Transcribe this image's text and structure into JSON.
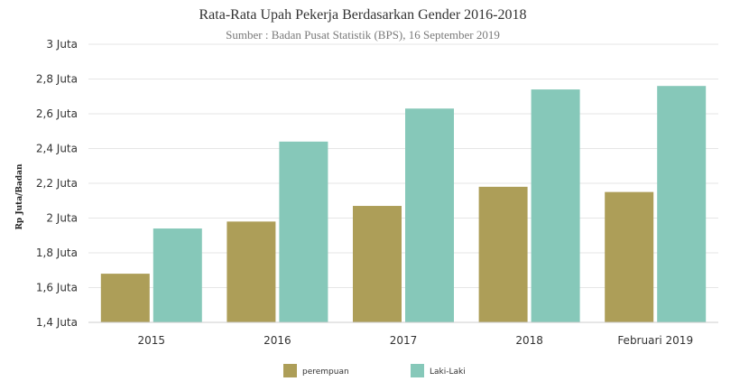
{
  "chart_data": {
    "type": "bar",
    "title": "Rata-Rata Upah Pekerja Berdasarkan Gender 2016-2018",
    "subtitle": "Sumber : Badan Pusat Statistik (BPS), 16 September 2019",
    "xlabel": "",
    "ylabel": "Rp Juta/Badan",
    "categories": [
      "2015",
      "2016",
      "2017",
      "2018",
      "Februari 2019"
    ],
    "series": [
      {
        "name": "perempuan",
        "color": "#ad9e58",
        "values": [
          1.68,
          1.98,
          2.07,
          2.18,
          2.15
        ]
      },
      {
        "name": "Laki-Laki",
        "color": "#86c8b9",
        "values": [
          1.94,
          2.44,
          2.63,
          2.74,
          2.76
        ]
      }
    ],
    "ylim": [
      1.4,
      3.0
    ],
    "yticks": [
      1.4,
      1.6,
      1.8,
      2.0,
      2.2,
      2.4,
      2.6,
      2.8,
      3.0
    ],
    "ytick_labels": [
      "1,4 Juta",
      "1,6 Juta",
      "1,8 Juta",
      "2 Juta",
      "2,2 Juta",
      "2,4 Juta",
      "2,6 Juta",
      "2,8 Juta",
      "3 Juta"
    ],
    "grid": true,
    "legend_position": "bottom-center"
  }
}
